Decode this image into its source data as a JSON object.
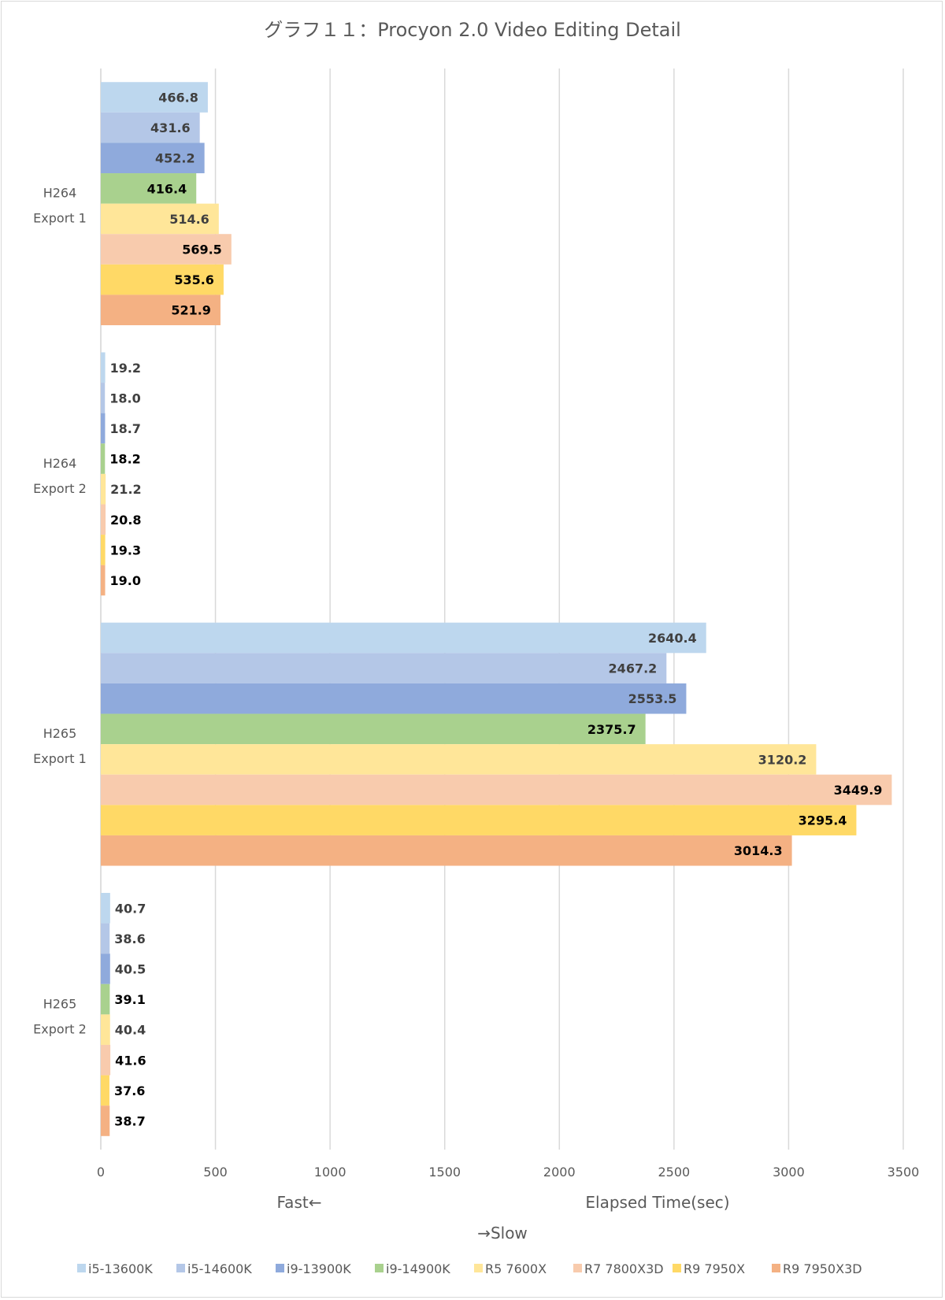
{
  "chart_data": {
    "type": "bar",
    "orientation": "horizontal",
    "title": "グラフ１１：Procyon 2.0 Video Editing Detail",
    "categories": [
      [
        "H264",
        "Export 1"
      ],
      [
        "H264",
        "Export 2"
      ],
      [
        "H265",
        "Export 1"
      ],
      [
        "H265",
        "Export 2"
      ]
    ],
    "series": [
      {
        "name": "i5-13600K",
        "color": "#bdd7ee",
        "label_color": "#404040",
        "values": [
          466.8,
          19.2,
          2640.4,
          40.7
        ]
      },
      {
        "name": "i5-14600K",
        "color": "#b4c7e7",
        "label_color": "#404040",
        "values": [
          431.6,
          18.0,
          2467.2,
          38.6
        ]
      },
      {
        "name": "i9-13900K",
        "color": "#8faadc",
        "label_color": "#404040",
        "values": [
          452.2,
          18.7,
          2553.5,
          40.5
        ]
      },
      {
        "name": "i9-14900K",
        "color": "#a9d18e",
        "label_color": "#000000",
        "values": [
          416.4,
          18.2,
          2375.7,
          39.1
        ]
      },
      {
        "name": "R5 7600X",
        "color": "#ffe699",
        "label_color": "#404040",
        "values": [
          514.6,
          21.2,
          3120.2,
          40.4
        ]
      },
      {
        "name": "R7 7800X3D",
        "color": "#f8cbad",
        "label_color": "#000000",
        "values": [
          569.5,
          20.8,
          3449.9,
          41.6
        ]
      },
      {
        "name": "R9 7950X",
        "color": "#ffd966",
        "label_color": "#000000",
        "values": [
          535.6,
          19.3,
          3295.4,
          37.6
        ]
      },
      {
        "name": "R9 7950X3D",
        "color": "#f4b183",
        "label_color": "#000000",
        "values": [
          521.9,
          19.0,
          3014.3,
          38.7
        ]
      }
    ],
    "xlim": [
      0,
      3500
    ],
    "xticks": [
      0,
      500,
      1000,
      1500,
      2000,
      2500,
      3000,
      3500
    ],
    "axis_label_left": "Fast←",
    "axis_label_right": "Elapsed Time(sec)",
    "axis_label_bottom": "→Slow",
    "grid": true,
    "legend_position": "bottom"
  }
}
